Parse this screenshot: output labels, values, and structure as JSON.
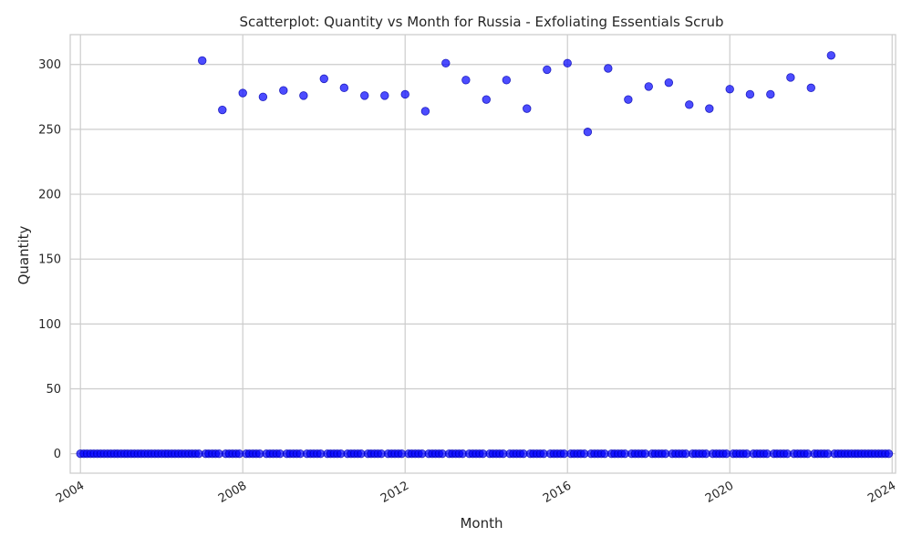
{
  "chart_data": {
    "type": "scatter",
    "title": "Scatterplot: Quantity vs Month for Russia - Exfoliating Essentials Scrub",
    "xlabel": "Month",
    "ylabel": "Quantity",
    "x_range": [
      "2003-10-01",
      "2024-02-01"
    ],
    "x_ticks": [
      "2004-01-01",
      "2008-01-01",
      "2012-01-01",
      "2016-01-01",
      "2020-01-01",
      "2024-01-01"
    ],
    "x_tick_labels": [
      "2004",
      "2008",
      "2012",
      "2016",
      "2020",
      "2024"
    ],
    "ylim": [
      -15,
      323
    ],
    "y_ticks": [
      0,
      50,
      100,
      150,
      200,
      250,
      300
    ],
    "y_tick_labels": [
      "0",
      "50",
      "100",
      "150",
      "200",
      "250",
      "300"
    ],
    "grid": true,
    "legend": "none",
    "marker_color": "#0000ff",
    "marker_alpha": 0.7,
    "baseline_series": {
      "from": "2004-01",
      "to": "2023-12",
      "frequency": "monthly",
      "value": 0
    },
    "points": [
      {
        "x": "2007-01",
        "y": 303
      },
      {
        "x": "2007-07",
        "y": 265
      },
      {
        "x": "2008-01",
        "y": 278
      },
      {
        "x": "2008-07",
        "y": 275
      },
      {
        "x": "2009-01",
        "y": 280
      },
      {
        "x": "2009-07",
        "y": 276
      },
      {
        "x": "2010-01",
        "y": 289
      },
      {
        "x": "2010-07",
        "y": 282
      },
      {
        "x": "2011-01",
        "y": 276
      },
      {
        "x": "2011-07",
        "y": 276
      },
      {
        "x": "2012-01",
        "y": 277
      },
      {
        "x": "2012-07",
        "y": 264
      },
      {
        "x": "2013-01",
        "y": 301
      },
      {
        "x": "2013-07",
        "y": 288
      },
      {
        "x": "2014-01",
        "y": 273
      },
      {
        "x": "2014-07",
        "y": 288
      },
      {
        "x": "2015-01",
        "y": 266
      },
      {
        "x": "2015-07",
        "y": 296
      },
      {
        "x": "2016-01",
        "y": 301
      },
      {
        "x": "2016-07",
        "y": 248
      },
      {
        "x": "2017-01",
        "y": 297
      },
      {
        "x": "2017-07",
        "y": 273
      },
      {
        "x": "2018-01",
        "y": 283
      },
      {
        "x": "2018-07",
        "y": 286
      },
      {
        "x": "2019-01",
        "y": 269
      },
      {
        "x": "2019-07",
        "y": 266
      },
      {
        "x": "2020-01",
        "y": 281
      },
      {
        "x": "2020-07",
        "y": 277
      },
      {
        "x": "2021-01",
        "y": 277
      },
      {
        "x": "2021-07",
        "y": 290
      },
      {
        "x": "2022-01",
        "y": 282
      },
      {
        "x": "2022-07",
        "y": 307
      }
    ]
  }
}
